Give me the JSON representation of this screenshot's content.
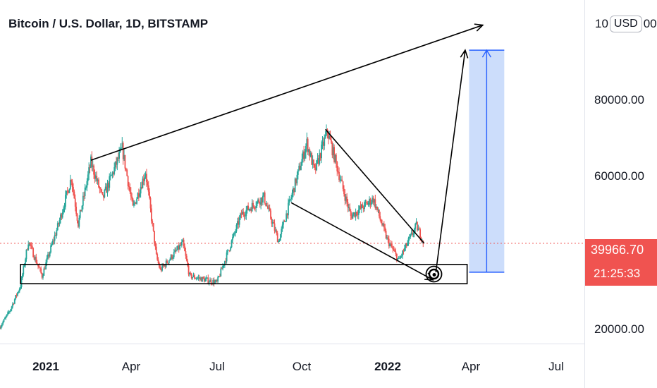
{
  "header": {
    "title": "Bitcoin / U.S. Dollar, 1D, BITSTAMP"
  },
  "price_scale": {
    "currency_prefix": "10",
    "currency": "USD",
    "currency_suffix": "00",
    "labels": [
      "80000.00",
      "60000.00",
      "20000.00"
    ]
  },
  "current_price": {
    "value": "39966.70",
    "countdown": "21:25:33",
    "color": "#f05350"
  },
  "time_axis": {
    "labels": [
      "2021",
      "Apr",
      "Jul",
      "Oct",
      "2022",
      "Apr",
      "Jul"
    ]
  },
  "colors": {
    "up": "#26a69a",
    "down": "#ef5350",
    "drawing": "#000000",
    "target_fill": "#c9dbfb",
    "target_line": "#2962ff",
    "price_line": "#f05350"
  },
  "chart_data": {
    "type": "candlestick",
    "title": "Bitcoin / U.S. Dollar, 1D, BITSTAMP",
    "x_range": [
      "2020-12-10",
      "2022-07-31"
    ],
    "y_range": [
      14000,
      103000
    ],
    "y_ticks": [
      20000,
      60000,
      80000
    ],
    "last_price": 39966.7,
    "price_path": [
      [
        "2020-12-10",
        18300
      ],
      [
        "2020-12-20",
        22500
      ],
      [
        "2020-12-31",
        29000
      ],
      [
        "2021-01-08",
        40500
      ],
      [
        "2021-01-22",
        31500
      ],
      [
        "2021-02-08",
        45000
      ],
      [
        "2021-02-21",
        57000
      ],
      [
        "2021-02-28",
        45000
      ],
      [
        "2021-03-13",
        61000
      ],
      [
        "2021-03-25",
        51500
      ],
      [
        "2021-04-14",
        64500
      ],
      [
        "2021-04-25",
        49000
      ],
      [
        "2021-05-08",
        58500
      ],
      [
        "2021-05-19",
        36500
      ],
      [
        "2021-05-23",
        33000
      ],
      [
        "2021-06-15",
        40000
      ],
      [
        "2021-06-22",
        31500
      ],
      [
        "2021-07-20",
        29800
      ],
      [
        "2021-08-14",
        47500
      ],
      [
        "2021-09-06",
        52000
      ],
      [
        "2021-09-21",
        40500
      ],
      [
        "2021-10-20",
        66000
      ],
      [
        "2021-10-28",
        58500
      ],
      [
        "2021-11-10",
        69000
      ],
      [
        "2021-11-26",
        54000
      ],
      [
        "2021-12-04",
        47000
      ],
      [
        "2021-12-27",
        51500
      ],
      [
        "2022-01-10",
        41000
      ],
      [
        "2022-01-22",
        35500
      ],
      [
        "2022-02-09",
        44500
      ],
      [
        "2022-02-17",
        39966
      ]
    ],
    "annotations": [
      {
        "type": "rectangle",
        "label": "support zone",
        "x": [
          "2020-12-31",
          "2022-04-02"
        ],
        "y": [
          29500,
          34500
        ]
      },
      {
        "type": "arrow",
        "label": "rising trend line",
        "from": [
          "2021-03-13",
          61500
        ],
        "to": [
          "2022-04-18",
          96500
        ]
      },
      {
        "type": "line",
        "label": "falling wedge upper",
        "from": [
          "2021-11-08",
          69500
        ],
        "to": [
          "2022-02-17",
          40000
        ]
      },
      {
        "type": "arrow",
        "label": "falling wedge lower",
        "from": [
          "2021-10-04",
          50500
        ],
        "to": [
          "2022-02-26",
          30500
        ]
      },
      {
        "type": "arrow",
        "label": "breakout projection",
        "from": [
          "2022-03-01",
          32500
        ],
        "to": [
          "2022-03-31",
          90000
        ]
      },
      {
        "type": "marker",
        "label": "circled point",
        "at": [
          "2022-02-27",
          32000
        ]
      },
      {
        "type": "long_position",
        "x": [
          "2022-04-04",
          "2022-05-10"
        ],
        "y": [
          32500,
          90000
        ]
      }
    ]
  }
}
